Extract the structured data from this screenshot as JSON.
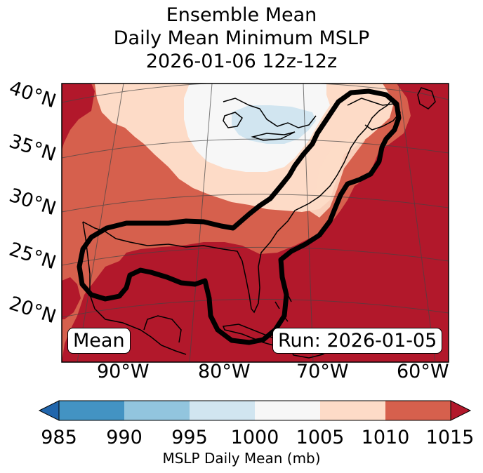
{
  "title": {
    "line1": "Ensemble Mean",
    "line2": "Daily Mean Minimum MSLP",
    "line3": "2026-01-06 12z-12z"
  },
  "lat_labels": [
    "40°N",
    "35°N",
    "30°N",
    "25°N",
    "20°N"
  ],
  "lon_labels": [
    "90°W",
    "80°W",
    "70°W",
    "60°W"
  ],
  "annotations": {
    "left": "Mean",
    "right": "Run: 2026-01-05"
  },
  "colorbar": {
    "ticks": [
      "985",
      "990",
      "995",
      "1000",
      "1005",
      "1010",
      "1015"
    ],
    "label": "MSLP Daily Mean (mb)",
    "colors": [
      "#2166ac",
      "#4393c3",
      "#92c5de",
      "#d1e5f0",
      "#f7f7f7",
      "#fddbc7",
      "#d6604d",
      "#b2182b"
    ]
  }
}
